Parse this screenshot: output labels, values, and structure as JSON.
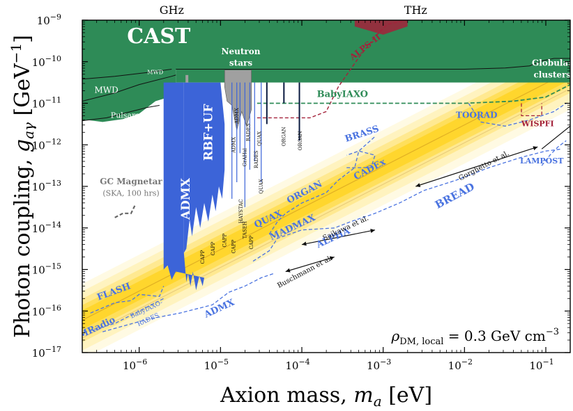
{
  "chart_data": {
    "type": "area",
    "title": "",
    "xlabel_prefix": "Axion mass, ",
    "xlabel_var": "m",
    "xlabel_sub": "a",
    "xlabel_unit": " [eV]",
    "ylabel_prefix": "Photon coupling, ",
    "ylabel_var": "g",
    "ylabel_sub": "aγ",
    "ylabel_unit": " [GeV",
    "ylabel_unit_sup": "−1",
    "ylabel_unit_close": "]",
    "xscale": "log",
    "yscale": "log",
    "xlim_log10": [
      -6.7,
      -0.7
    ],
    "ylim_log10": [
      -17,
      -9
    ],
    "x_ticks": [
      {
        "log": -6,
        "label": "10",
        "exp": "−6"
      },
      {
        "log": -5,
        "label": "10",
        "exp": "−5"
      },
      {
        "log": -4,
        "label": "10",
        "exp": "−4"
      },
      {
        "log": -3,
        "label": "10",
        "exp": "−3"
      },
      {
        "log": -2,
        "label": "10",
        "exp": "−2"
      },
      {
        "log": -1,
        "label": "10",
        "exp": "−1"
      }
    ],
    "y_ticks": [
      {
        "log": -17,
        "label": "10",
        "exp": "−17"
      },
      {
        "log": -16,
        "label": "10",
        "exp": "−16"
      },
      {
        "log": -15,
        "label": "10",
        "exp": "−15"
      },
      {
        "log": -14,
        "label": "10",
        "exp": "−14"
      },
      {
        "log": -13,
        "label": "10",
        "exp": "−13"
      },
      {
        "log": -12,
        "label": "10",
        "exp": "−12"
      },
      {
        "log": -11,
        "label": "10",
        "exp": "−11"
      },
      {
        "log": -10,
        "label": "10",
        "exp": "−10"
      },
      {
        "log": -9,
        "label": "10",
        "exp": "−9"
      }
    ],
    "top_axis_labels": [
      {
        "log": -5.6,
        "text": "GHz"
      },
      {
        "log": -2.6,
        "text": "THz"
      }
    ],
    "density_annotation": {
      "prefix": "ρ",
      "sub": "DM, local",
      "text": " = 0.3 GeV cm",
      "sup": "−3"
    },
    "colors": {
      "excluded_green": "#2e8b57",
      "haloscope_blue": "#3c64d8",
      "projection_blue": "#4a73e0",
      "projection_green": "#2e8b57",
      "alps_red": "#a3213a",
      "neutron_star_gray": "#a0a0a0",
      "qcd_band": "#ffd21a"
    },
    "qcd_band": {
      "center_log_x0": -6.7,
      "center_log_g0": -16.2,
      "slope": 1.0
    },
    "regions": [
      {
        "name": "CAST",
        "label": "CAST",
        "log_g_bottom": -10.18,
        "label_at": [
          -6.15,
          -9.55
        ]
      },
      {
        "name": "MWD",
        "label": "MWD",
        "label_at": [
          -6.55,
          -10.75
        ]
      },
      {
        "name": "MWD-thin",
        "label": "MWD",
        "label_at": [
          -5.9,
          -10.3
        ]
      },
      {
        "name": "Pulsars",
        "label": "Pulsars",
        "label_at": [
          -6.35,
          -11.35
        ]
      },
      {
        "name": "Neutron-stars",
        "label1": "Neutron",
        "label2": "stars",
        "label_at": [
          -4.75,
          -9.82
        ]
      },
      {
        "name": "Globular-clusters",
        "label1": "Globular",
        "label2": "clusters",
        "label_at": [
          -0.92,
          -10.1
        ]
      },
      {
        "name": "ADMX-excluded",
        "label": "ADMX",
        "label_at": [
          -5.38,
          -13.3
        ]
      },
      {
        "name": "RBF-UF",
        "label": "RBF+UF",
        "label_at": [
          -5.1,
          -11.7
        ]
      },
      {
        "name": "ALPS-II",
        "label": "ALPS-II",
        "label_at": [
          -3.2,
          -9.7
        ]
      }
    ],
    "projections": [
      {
        "name": "BabyIAXO",
        "label": "BabyIAXO",
        "label_at": [
          -3.5,
          -10.85
        ]
      },
      {
        "name": "TOORAD",
        "label": "TOORAD",
        "label_at": [
          -1.85,
          -11.35
        ]
      },
      {
        "name": "BRASS",
        "label": "BRASS",
        "label_at": [
          -3.25,
          -11.8
        ]
      },
      {
        "name": "CADEx",
        "label": "CADEx",
        "label_at": [
          -3.15,
          -12.65
        ]
      },
      {
        "name": "ORGAN",
        "label": "ORGAN",
        "label_at": [
          -3.95,
          -13.2
        ]
      },
      {
        "name": "QUAX",
        "label": "QUAX",
        "label_at": [
          -4.4,
          -13.85
        ]
      },
      {
        "name": "MADMAX",
        "label": "MADMAX",
        "label_at": [
          -4.1,
          -14.05
        ]
      },
      {
        "name": "ALPHA",
        "label": "ALPHA",
        "label_at": [
          -3.6,
          -14.3
        ]
      },
      {
        "name": "BREAD",
        "label": "BREAD",
        "label_at": [
          -2.1,
          -13.3
        ]
      },
      {
        "name": "WISPFI",
        "label": "WISPFI",
        "label_at": [
          -1.1,
          -11.55
        ]
      },
      {
        "name": "LAMPOST",
        "label": "LAMPOST",
        "label_at": [
          -1.05,
          -12.45
        ]
      },
      {
        "name": "FLASH",
        "label": "FLASH",
        "label_at": [
          -6.3,
          -15.6
        ]
      },
      {
        "name": "BabyIAXO-RADES",
        "label1": "BabyIAXO-",
        "label2": "RADES",
        "label_at": [
          -5.9,
          -16.0
        ]
      },
      {
        "name": "DMRadio",
        "label": "DMRadio",
        "label_at": [
          -6.55,
          -16.5
        ]
      },
      {
        "name": "ADMX-projection",
        "label": "ADMX",
        "label_at": [
          -5.0,
          -16.0
        ]
      },
      {
        "name": "GC-Magnetar",
        "label1": "GC Magnetar",
        "label2": "(SKA, 100 hrs)",
        "label_at": [
          -6.1,
          -12.95
        ]
      }
    ],
    "small_labels": [
      "CAPP",
      "CAPP",
      "CAPP",
      "CAPP",
      "HAYSTAC",
      "QUAX",
      "RADES",
      "ORGAN",
      "ORGAN",
      "TASEH",
      "CAPP",
      "ADMX",
      "QUAX",
      "GrAHal",
      "ADMX",
      "RADES"
    ],
    "predictions": [
      {
        "name": "Gorghetto-et-al",
        "label": "Gorghetto et al."
      },
      {
        "name": "Saikawa-et-al",
        "label": "Saikawa et al."
      },
      {
        "name": "Buschmann-et-al",
        "label": "Buschmann et al."
      }
    ]
  }
}
